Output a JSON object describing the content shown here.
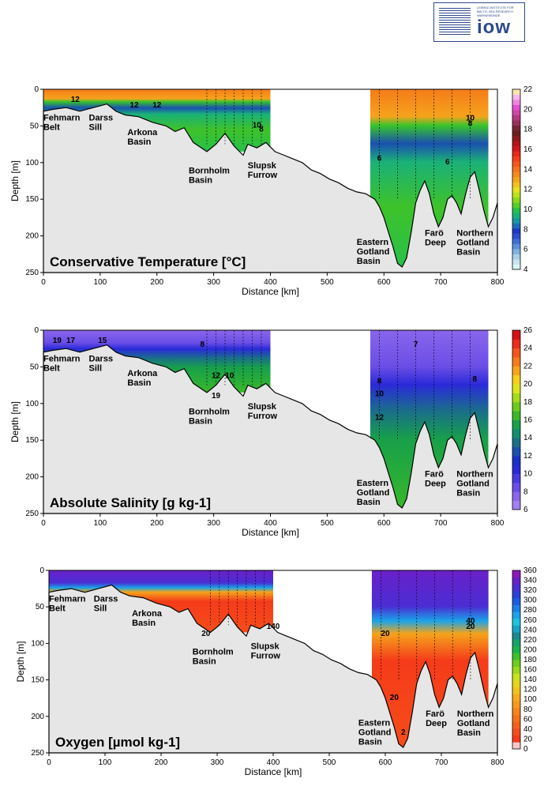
{
  "logo": {
    "name": "iow",
    "line1": "LEIBNIZ-INSTITUTE FOR",
    "line2": "BALTIC SEA RESEARCH",
    "line3": "WARNEMÜNDE"
  },
  "chart_data": [
    {
      "type": "heatmap",
      "title": "Conservative Temperature [°C]",
      "xlabel": "Distance [km]",
      "ylabel": "Depth [m]",
      "y_ticks": [
        0,
        50,
        100,
        150,
        200,
        250
      ],
      "x_ticks": [
        0,
        100,
        200,
        300,
        400,
        500,
        600,
        700,
        800
      ],
      "colorbar_ticks": [
        4,
        6,
        8,
        10,
        12,
        14,
        16,
        18,
        20,
        22
      ],
      "basins": [
        "Fehmarn Belt",
        "Darss Sill",
        "Arkona Basin",
        "Bornholm Basin",
        "Slupsk Furrow",
        "Eastern Gotland Basin",
        "Farö Deep",
        "Northern Gotland Basin"
      ],
      "contour_labels": [
        "12",
        "12",
        "12",
        "10",
        "8",
        "6",
        "10",
        "8",
        "6"
      ]
    },
    {
      "type": "heatmap",
      "title": "Absolute Salinity [g kg-1]",
      "xlabel": "Distance [km]",
      "ylabel": "Depth [m]",
      "y_ticks": [
        0,
        50,
        100,
        150,
        200,
        250
      ],
      "x_ticks": [
        0,
        100,
        200,
        300,
        400,
        500,
        600,
        700,
        800
      ],
      "colorbar_ticks": [
        6,
        8,
        10,
        12,
        14,
        16,
        18,
        20,
        22,
        24,
        26
      ],
      "basins": [
        "Fehmarn Belt",
        "Darss Sill",
        "Arkona Basin",
        "Bornholm Basin",
        "Slupsk Furrow",
        "Eastern Gotland Basin",
        "Farö Deep",
        "Northern Gotland Basin"
      ],
      "contour_labels": [
        "19",
        "17",
        "15",
        "8",
        "12",
        "10",
        "19",
        "7",
        "8",
        "10",
        "12",
        "8"
      ]
    },
    {
      "type": "heatmap",
      "title": "Oxygen [µmol kg-1]",
      "xlabel": "Distance [km]",
      "ylabel": "Depth [m]",
      "y_ticks": [
        0,
        50,
        100,
        150,
        200,
        250
      ],
      "x_ticks": [
        0,
        100,
        200,
        300,
        400,
        500,
        600,
        700,
        800
      ],
      "colorbar_ticks": [
        0,
        20,
        40,
        60,
        80,
        100,
        120,
        140,
        160,
        180,
        200,
        220,
        240,
        260,
        280,
        300,
        320,
        340,
        360
      ],
      "basins": [
        "Fehmarn Belt",
        "Darss Sill",
        "Arkona Basin",
        "Bornholm Basin",
        "Slupsk Furrow",
        "Eastern Gotland Basin",
        "Farö Deep",
        "Northern Gotland Basin"
      ],
      "contour_labels": [
        "140",
        "20",
        "20",
        "40",
        "20",
        "20",
        "2"
      ]
    }
  ]
}
